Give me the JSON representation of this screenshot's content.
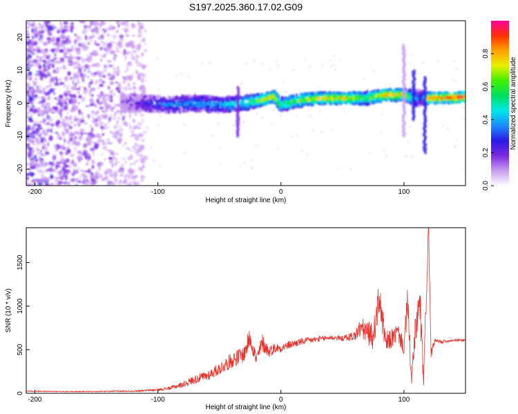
{
  "title": "S197.2025.360.17.02.G09",
  "chart_data": [
    {
      "type": "heatmap",
      "xlabel": "Height of straight line (km)",
      "ylabel": "Frequency (Hz)",
      "xlim": [
        -207,
        150
      ],
      "ylim": [
        -25,
        25
      ],
      "xticks": [
        -200,
        -100,
        0,
        100
      ],
      "yticks": [
        -20,
        -10,
        0,
        10,
        20
      ],
      "colorbar": {
        "label": "Normalized spectral amplitude",
        "range": [
          0,
          1
        ],
        "ticks": [
          0.0,
          0.2,
          0.4,
          0.6,
          0.8
        ],
        "colors": [
          "#ffffff",
          "#c89cf0",
          "#7a2ae0",
          "#2a1ae8",
          "#1a8cff",
          "#00e8e8",
          "#00e060",
          "#40f000",
          "#e8f000",
          "#ffa000",
          "#ff3000",
          "#ff00a0"
        ]
      },
      "ridge": {
        "x": [
          -130,
          -110,
          -90,
          -70,
          -50,
          -30,
          -15,
          -5,
          0,
          10,
          30,
          50,
          70,
          85,
          100,
          110,
          115,
          120,
          150
        ],
        "freq": [
          0,
          0,
          -0.5,
          0,
          -0.5,
          0,
          1,
          2,
          -0.5,
          0.5,
          1.5,
          1.5,
          1.5,
          2.5,
          2.5,
          1.5,
          1.5,
          1.5,
          1.8
        ],
        "amplitude": [
          0.1,
          0.25,
          0.35,
          0.4,
          0.4,
          0.5,
          0.7,
          0.8,
          0.55,
          0.6,
          0.75,
          0.8,
          0.6,
          0.85,
          0.75,
          0.4,
          0.3,
          0.85,
          0.95
        ]
      },
      "noise_region_x": [
        -207,
        -110
      ]
    },
    {
      "type": "line",
      "xlabel": "Height of straight line (km)",
      "ylabel": "SNR (10 * v/v)",
      "xlim": [
        -207,
        150
      ],
      "ylim": [
        0,
        1900
      ],
      "xticks": [
        -200,
        -100,
        0,
        100
      ],
      "yticks": [
        0,
        500,
        1000,
        1500
      ],
      "color": "#e8302a",
      "series": [
        {
          "name": "SNR",
          "x": [
            -207,
            -180,
            -150,
            -120,
            -100,
            -90,
            -80,
            -70,
            -60,
            -50,
            -40,
            -30,
            -25,
            -20,
            -15,
            -10,
            -5,
            0,
            10,
            20,
            30,
            40,
            50,
            60,
            65,
            70,
            75,
            80,
            85,
            90,
            95,
            100,
            103,
            106,
            110,
            113,
            116,
            118,
            120,
            122,
            125,
            130,
            140,
            150
          ],
          "y": [
            25,
            20,
            20,
            25,
            40,
            60,
            100,
            160,
            200,
            280,
            380,
            450,
            650,
            380,
            580,
            480,
            520,
            520,
            570,
            600,
            620,
            640,
            630,
            660,
            750,
            700,
            650,
            1100,
            560,
            630,
            700,
            520,
            1050,
            150,
            800,
            1000,
            120,
            1100,
            1900,
            450,
            600,
            590,
            610,
            610
          ],
          "amplitude_jitter": [
            5,
            5,
            5,
            8,
            12,
            20,
            35,
            50,
            60,
            70,
            90,
            100,
            120,
            90,
            110,
            70,
            60,
            50,
            45,
            40,
            35,
            30,
            30,
            60,
            120,
            140,
            150,
            200,
            150,
            110,
            110,
            90,
            250,
            80,
            250,
            300,
            80,
            200,
            150,
            50,
            30,
            20,
            15,
            15
          ]
        }
      ]
    }
  ]
}
